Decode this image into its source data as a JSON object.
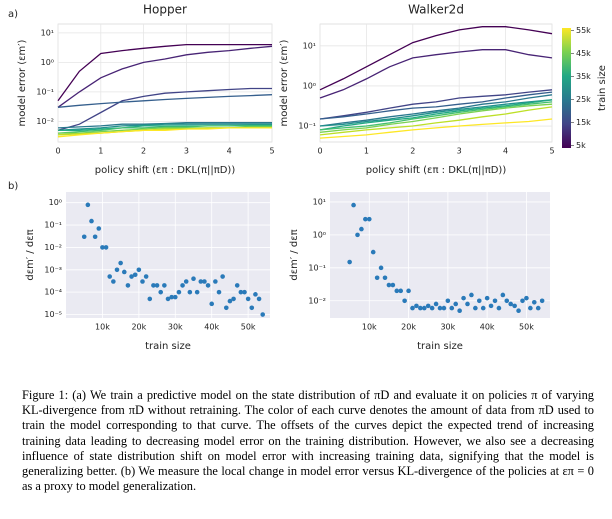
{
  "panel_labels": [
    "a)",
    "b)"
  ],
  "colorbar": {
    "title": "train size",
    "lim": [
      4000,
      56000
    ],
    "colors": [
      "#440154",
      "#414487",
      "#2a788e",
      "#22a884",
      "#7ad151",
      "#fde725"
    ],
    "ticks": [
      {
        "value": 5000,
        "label": "5k"
      },
      {
        "value": 15000,
        "label": "15k"
      },
      {
        "value": 25000,
        "label": "25k"
      },
      {
        "value": 35000,
        "label": "35k"
      },
      {
        "value": 45000,
        "label": "45k"
      },
      {
        "value": 55000,
        "label": "55k"
      }
    ]
  },
  "chart_data": [
    {
      "type": "line",
      "title": "Hopper",
      "x_label": "policy shift (επ : DKL(π||πD))",
      "y_label": "model error (εm′)",
      "log_y": true,
      "grid": true,
      "xlim": [
        0,
        5
      ],
      "xticks": [
        0,
        1,
        2,
        3,
        4,
        5
      ],
      "ylim": [
        0.002,
        20
      ],
      "yticks": [
        {
          "value": 0.01,
          "label": "10⁻²"
        },
        {
          "value": 0.1,
          "label": "10⁻¹"
        },
        {
          "value": 1,
          "label": "10⁰"
        },
        {
          "value": 10,
          "label": "10¹"
        }
      ],
      "x": [
        0,
        0.5,
        1,
        1.5,
        2,
        2.5,
        3,
        3.5,
        4,
        4.5,
        5
      ],
      "series": [
        {
          "color": "#440154",
          "values": [
            0.05,
            0.5,
            2,
            2.5,
            3,
            3.5,
            4,
            4,
            4,
            4,
            4
          ]
        },
        {
          "color": "#482475",
          "values": [
            0.03,
            0.1,
            0.3,
            0.6,
            1,
            1.3,
            1.8,
            2.2,
            2.5,
            3,
            3.5
          ]
        },
        {
          "color": "#414487",
          "values": [
            0.005,
            0.008,
            0.02,
            0.05,
            0.07,
            0.09,
            0.1,
            0.11,
            0.12,
            0.13,
            0.13
          ]
        },
        {
          "color": "#355f8d",
          "values": [
            0.03,
            0.035,
            0.04,
            0.045,
            0.05,
            0.055,
            0.06,
            0.065,
            0.07,
            0.075,
            0.08
          ]
        },
        {
          "color": "#2a788e",
          "values": [
            0.006,
            0.0065,
            0.007,
            0.008,
            0.008,
            0.0085,
            0.009,
            0.009,
            0.009,
            0.009,
            0.009
          ]
        },
        {
          "color": "#21918c",
          "values": [
            0.005,
            0.0055,
            0.006,
            0.007,
            0.0075,
            0.008,
            0.008,
            0.008,
            0.008,
            0.008,
            0.008
          ]
        },
        {
          "color": "#22a884",
          "values": [
            0.005,
            0.005,
            0.0055,
            0.006,
            0.007,
            0.007,
            0.007,
            0.007,
            0.007,
            0.0075,
            0.0075
          ]
        },
        {
          "color": "#44bf70",
          "values": [
            0.004,
            0.0045,
            0.005,
            0.006,
            0.006,
            0.0065,
            0.0065,
            0.007,
            0.007,
            0.007,
            0.007
          ]
        },
        {
          "color": "#7ad151",
          "values": [
            0.004,
            0.004,
            0.0045,
            0.005,
            0.0055,
            0.006,
            0.006,
            0.006,
            0.006,
            0.0065,
            0.0065
          ]
        },
        {
          "color": "#bddf26",
          "values": [
            0.0035,
            0.0038,
            0.004,
            0.0045,
            0.005,
            0.0055,
            0.0055,
            0.006,
            0.006,
            0.006,
            0.006
          ]
        },
        {
          "color": "#fde725",
          "values": [
            0.003,
            0.0035,
            0.004,
            0.0045,
            0.005,
            0.005,
            0.0055,
            0.0055,
            0.006,
            0.006,
            0.006
          ]
        }
      ]
    },
    {
      "type": "line",
      "title": "Walker2d",
      "x_label": "policy shift (επ : DKL(π||πD))",
      "y_label": "model error (εm′)",
      "log_y": true,
      "grid": true,
      "xlim": [
        0,
        5
      ],
      "xticks": [
        0,
        1,
        2,
        3,
        4,
        5
      ],
      "ylim": [
        0.04,
        35
      ],
      "yticks": [
        {
          "value": 0.1,
          "label": "10⁻¹"
        },
        {
          "value": 1,
          "label": "10⁰"
        },
        {
          "value": 10,
          "label": "10¹"
        }
      ],
      "x": [
        0,
        0.5,
        1,
        1.5,
        2,
        2.5,
        3,
        3.5,
        4,
        4.5,
        5
      ],
      "series": [
        {
          "color": "#440154",
          "values": [
            0.8,
            1.5,
            3,
            6,
            12,
            18,
            25,
            30,
            30,
            25,
            20
          ]
        },
        {
          "color": "#482475",
          "values": [
            0.5,
            0.8,
            1.5,
            3,
            5,
            6,
            7,
            8,
            8,
            6,
            5
          ]
        },
        {
          "color": "#414487",
          "values": [
            0.15,
            0.18,
            0.22,
            0.28,
            0.35,
            0.4,
            0.5,
            0.55,
            0.6,
            0.7,
            0.8
          ]
        },
        {
          "color": "#355f8d",
          "values": [
            0.15,
            0.17,
            0.2,
            0.24,
            0.28,
            0.3,
            0.35,
            0.4,
            0.5,
            0.6,
            0.7
          ]
        },
        {
          "color": "#2a788e",
          "values": [
            0.1,
            0.12,
            0.14,
            0.17,
            0.2,
            0.24,
            0.28,
            0.35,
            0.4,
            0.5,
            0.6
          ]
        },
        {
          "color": "#21918c",
          "values": [
            0.1,
            0.11,
            0.13,
            0.15,
            0.18,
            0.22,
            0.26,
            0.3,
            0.35,
            0.4,
            0.45
          ]
        },
        {
          "color": "#22a884",
          "values": [
            0.08,
            0.1,
            0.12,
            0.14,
            0.16,
            0.2,
            0.24,
            0.28,
            0.32,
            0.38,
            0.45
          ]
        },
        {
          "color": "#44bf70",
          "values": [
            0.08,
            0.09,
            0.1,
            0.12,
            0.15,
            0.18,
            0.22,
            0.26,
            0.3,
            0.35,
            0.4
          ]
        },
        {
          "color": "#7ad151",
          "values": [
            0.07,
            0.08,
            0.09,
            0.11,
            0.13,
            0.16,
            0.2,
            0.24,
            0.28,
            0.32,
            0.35
          ]
        },
        {
          "color": "#bddf26",
          "values": [
            0.06,
            0.07,
            0.08,
            0.09,
            0.1,
            0.12,
            0.14,
            0.17,
            0.2,
            0.25,
            0.3
          ]
        },
        {
          "color": "#fde725",
          "values": [
            0.05,
            0.055,
            0.06,
            0.07,
            0.08,
            0.09,
            0.1,
            0.11,
            0.12,
            0.13,
            0.15
          ]
        }
      ]
    },
    {
      "type": "scatter",
      "x_label": "train size",
      "y_label": "dεm′ / dεπ",
      "log_y": true,
      "grid": true,
      "color": "#2a7ab9",
      "xlim": [
        0,
        56000
      ],
      "xticks": [
        {
          "value": 10000,
          "label": "10k"
        },
        {
          "value": 20000,
          "label": "20k"
        },
        {
          "value": 30000,
          "label": "30k"
        },
        {
          "value": 40000,
          "label": "40k"
        },
        {
          "value": 50000,
          "label": "50k"
        }
      ],
      "ylim": [
        7e-06,
        3
      ],
      "yticks": [
        {
          "value": 1e-05,
          "label": "10⁻⁵"
        },
        {
          "value": 0.0001,
          "label": "10⁻⁴"
        },
        {
          "value": 0.001,
          "label": "10⁻³"
        },
        {
          "value": 0.01,
          "label": "10⁻²"
        },
        {
          "value": 0.1,
          "label": "10⁻¹"
        },
        {
          "value": 1,
          "label": "10⁰"
        }
      ],
      "x": [
        5000,
        6000,
        7000,
        8000,
        9000,
        10000,
        11000,
        12000,
        13000,
        14000,
        15000,
        16000,
        17000,
        18000,
        19000,
        20000,
        21000,
        22000,
        23000,
        24000,
        25000,
        26000,
        27000,
        28000,
        29000,
        30000,
        31000,
        32000,
        33000,
        34000,
        35000,
        36000,
        37000,
        38000,
        39000,
        40000,
        41000,
        42000,
        43000,
        44000,
        45000,
        46000,
        47000,
        48000,
        49000,
        50000,
        51000,
        52000,
        53000,
        54000
      ],
      "values": [
        0.03,
        0.8,
        0.15,
        0.03,
        0.07,
        0.01,
        0.01,
        0.0005,
        0.0003,
        0.001,
        0.002,
        0.0008,
        0.0002,
        0.0005,
        0.0006,
        0.001,
        0.0003,
        0.0005,
        5e-05,
        0.0002,
        0.0002,
        0.0001,
        0.0002,
        5e-05,
        6e-05,
        6e-05,
        0.0001,
        0.0002,
        0.0003,
        0.0001,
        0.0004,
        0.0001,
        0.0003,
        0.0003,
        0.0002,
        3e-05,
        0.0003,
        0.0001,
        0.0005,
        2e-05,
        4e-05,
        5e-05,
        0.0002,
        0.0001,
        0.0001,
        5e-05,
        2e-05,
        8e-05,
        5e-05,
        1e-05
      ]
    },
    {
      "type": "scatter",
      "x_label": "train size",
      "y_label": "dεm′ / dεπ",
      "log_y": true,
      "grid": true,
      "color": "#2a7ab9",
      "xlim": [
        0,
        56000
      ],
      "xticks": [
        {
          "value": 10000,
          "label": "10k"
        },
        {
          "value": 20000,
          "label": "20k"
        },
        {
          "value": 30000,
          "label": "30k"
        },
        {
          "value": 40000,
          "label": "40k"
        },
        {
          "value": 50000,
          "label": "50k"
        }
      ],
      "ylim": [
        0.003,
        20
      ],
      "yticks": [
        {
          "value": 0.01,
          "label": "10⁻²"
        },
        {
          "value": 0.1,
          "label": "10⁻¹"
        },
        {
          "value": 1,
          "label": "10⁰"
        },
        {
          "value": 10,
          "label": "10¹"
        }
      ],
      "x": [
        5000,
        6000,
        7000,
        8000,
        9000,
        10000,
        11000,
        12000,
        13000,
        14000,
        15000,
        16000,
        17000,
        18000,
        19000,
        20000,
        21000,
        22000,
        23000,
        24000,
        25000,
        26000,
        27000,
        28000,
        29000,
        30000,
        31000,
        32000,
        33000,
        34000,
        35000,
        36000,
        37000,
        38000,
        39000,
        40000,
        41000,
        42000,
        43000,
        44000,
        45000,
        46000,
        47000,
        48000,
        49000,
        50000,
        51000,
        52000,
        53000,
        54000
      ],
      "values": [
        0.15,
        8,
        1,
        1.5,
        3,
        3,
        0.3,
        0.05,
        0.1,
        0.05,
        0.03,
        0.03,
        0.02,
        0.02,
        0.01,
        0.02,
        0.006,
        0.007,
        0.006,
        0.006,
        0.007,
        0.006,
        0.008,
        0.006,
        0.006,
        0.01,
        0.006,
        0.008,
        0.005,
        0.012,
        0.008,
        0.015,
        0.006,
        0.01,
        0.006,
        0.012,
        0.007,
        0.01,
        0.006,
        0.015,
        0.01,
        0.008,
        0.007,
        0.005,
        0.01,
        0.012,
        0.006,
        0.009,
        0.006,
        0.01
      ]
    }
  ],
  "caption": "Figure 1: (a) We train a predictive model on the state distribution of πD and evaluate it on policies π of varying KL-divergence from πD without retraining. The color of each curve denotes the amount of data from πD used to train the model corresponding to that curve. The offsets of the curves depict the expected trend of increasing training data leading to decreasing model error on the training distribution. However, we also see a decreasing influence of state distribution shift on model error with increasing training data, signifying that the model is generalizing better. (b) We measure the local change in model error versus KL-divergence of the policies at επ = 0 as a proxy to model generalization."
}
